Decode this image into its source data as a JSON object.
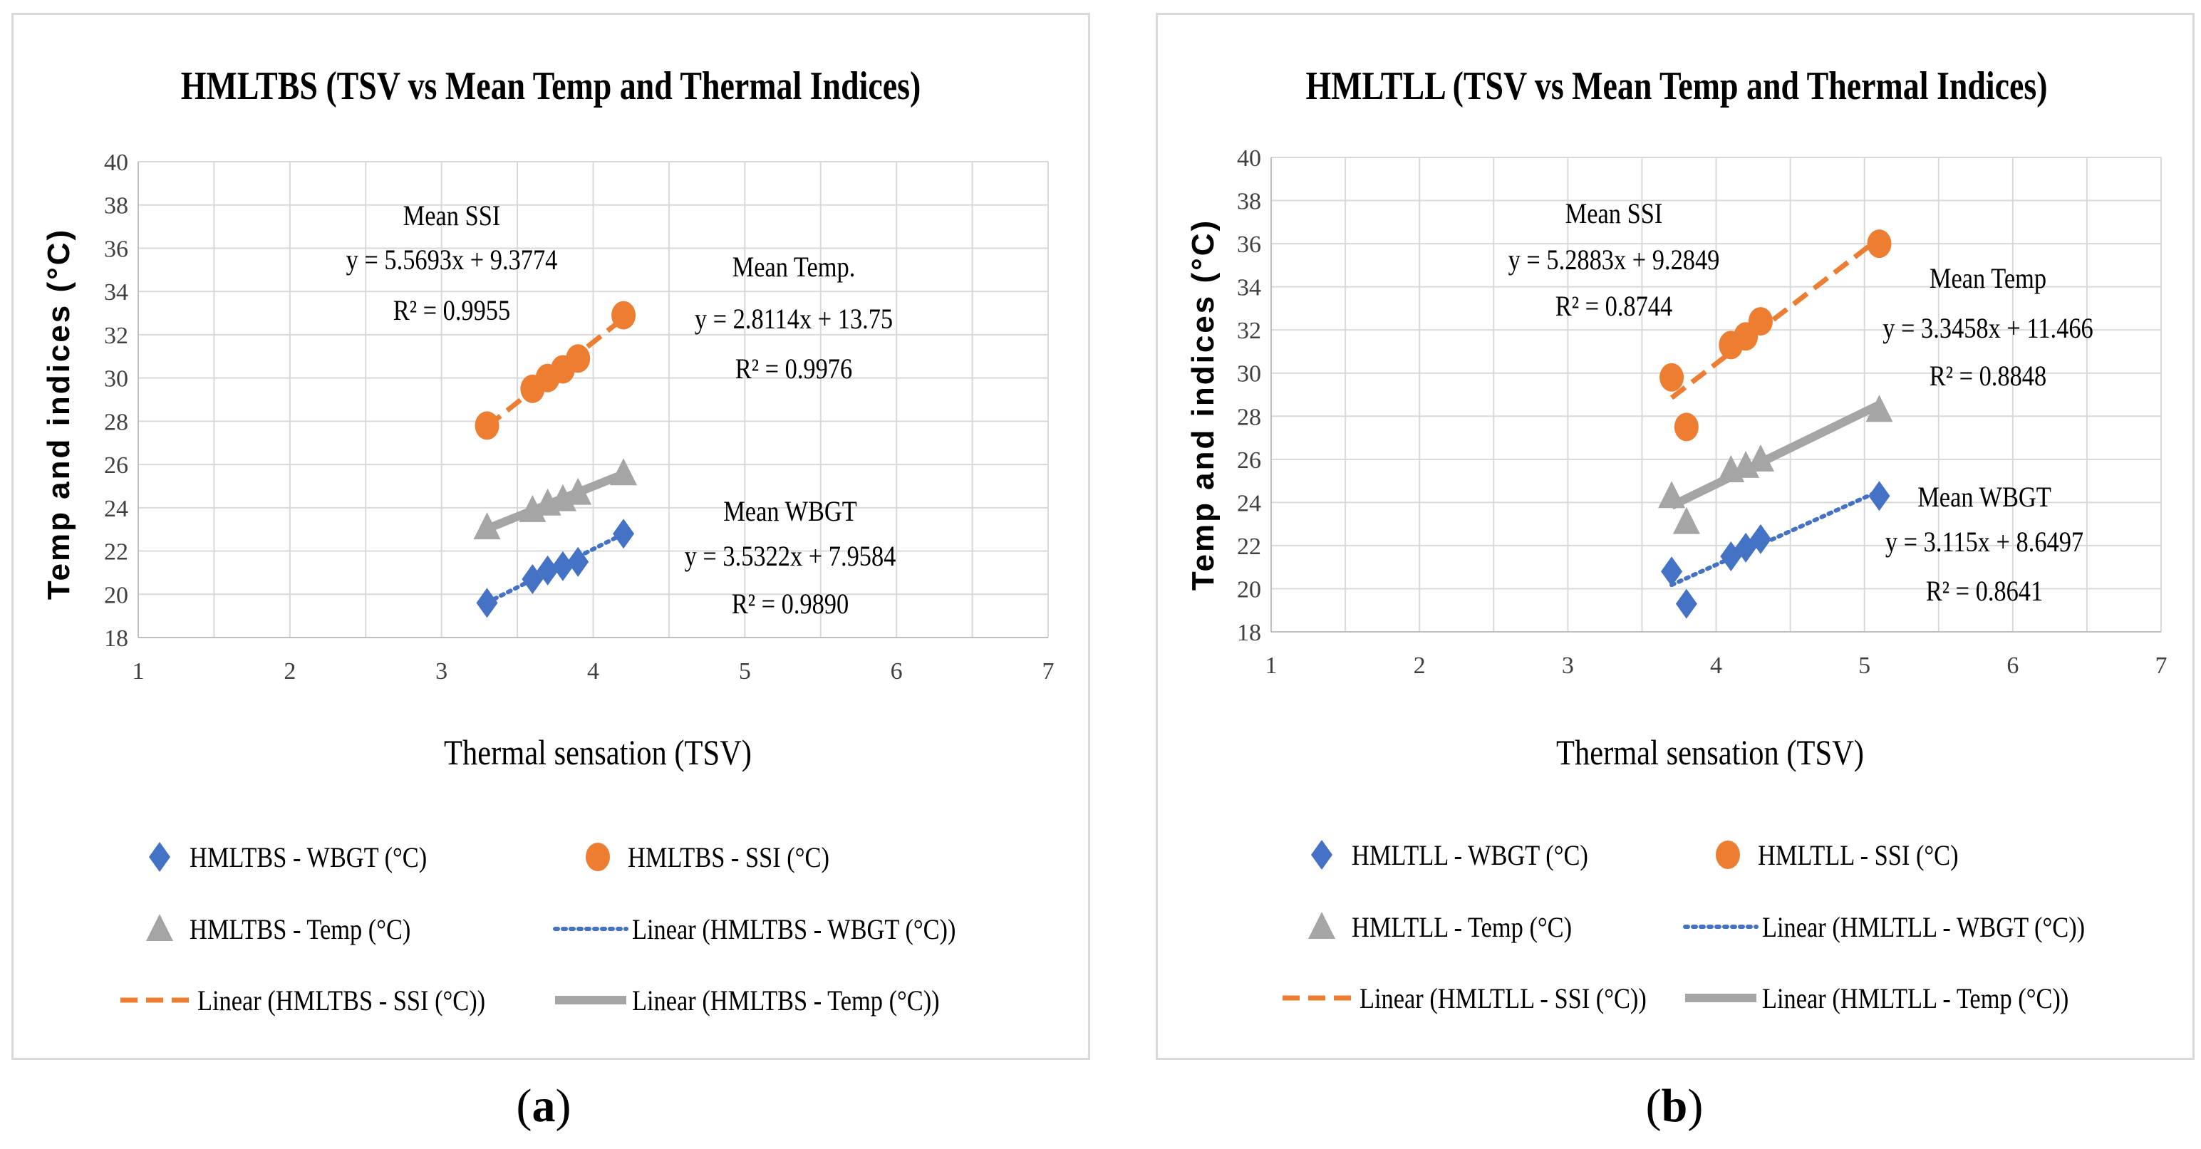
{
  "figure": {
    "captions": [
      {
        "open": "(",
        "letter": "a",
        "close": ")"
      },
      {
        "open": "(",
        "letter": "b",
        "close": ")"
      }
    ]
  },
  "chart_data": [
    {
      "type": "scatter",
      "title": "HMLTBS (TSV vs Mean Temp and Thermal Indices)",
      "xlabel": "Thermal sensation (TSV)",
      "ylabel": "Temp and indices (°C)",
      "xlim": [
        1,
        7
      ],
      "ylim": [
        18,
        40
      ],
      "xticks": [
        1,
        2,
        3,
        4,
        5,
        6,
        7
      ],
      "yticks": [
        18,
        20,
        22,
        24,
        26,
        28,
        30,
        32,
        34,
        36,
        38,
        40
      ],
      "grid": true,
      "colors": {
        "wbgt": "#4472c4",
        "ssi": "#ed7d31",
        "temp": "#a5a5a5"
      },
      "series": [
        {
          "key": "wbgt",
          "name": "HMLTBS - WBGT (°C)",
          "marker": "diamond",
          "x": [
            3.3,
            3.6,
            3.7,
            3.8,
            3.9,
            4.2
          ],
          "y": [
            19.6,
            20.7,
            21.1,
            21.3,
            21.5,
            22.8
          ]
        },
        {
          "key": "ssi",
          "name": "HMLTBS - SSI (°C)",
          "marker": "circle",
          "x": [
            3.3,
            3.6,
            3.7,
            3.8,
            3.9,
            4.2
          ],
          "y": [
            27.8,
            29.5,
            30.0,
            30.4,
            30.9,
            32.9
          ]
        },
        {
          "key": "temp",
          "name": "HMLTBS - Temp (°C)",
          "marker": "triangle",
          "x": [
            3.3,
            3.6,
            3.7,
            3.8,
            3.9,
            4.2
          ],
          "y": [
            23.1,
            23.9,
            24.2,
            24.4,
            24.7,
            25.6
          ]
        }
      ],
      "trendlines": [
        {
          "key": "wbgt",
          "name": "Linear (HMLTBS - WBGT (°C))",
          "style": "dotted",
          "slope": 3.5322,
          "intercept": 7.9584,
          "x_range": [
            3.3,
            4.2
          ]
        },
        {
          "key": "ssi",
          "name": "Linear (HMLTBS - SSI (°C))",
          "style": "dashed",
          "slope": 5.5693,
          "intercept": 9.3774,
          "x_range": [
            3.3,
            4.2
          ]
        },
        {
          "key": "temp",
          "name": "Linear (HMLTBS - Temp (°C))",
          "style": "solid",
          "slope": 2.8114,
          "intercept": 13.75,
          "x_range": [
            3.3,
            4.2
          ]
        }
      ],
      "annotations": [
        {
          "key": "ssi",
          "title": "Mean SSI",
          "equation": "y = 5.5693x + 9.3774",
          "r2": "R² = 0.9955"
        },
        {
          "key": "temp",
          "title": "Mean Temp.",
          "equation": "y = 2.8114x + 13.75",
          "r2": "R² = 0.9976"
        },
        {
          "key": "wbgt",
          "title": "Mean WBGT",
          "equation": "y = 3.5322x + 7.9584",
          "r2": "R² = 0.9890"
        }
      ],
      "legend_placement": "bottom"
    },
    {
      "type": "scatter",
      "title": "HMLTLL (TSV vs Mean Temp and Thermal Indices)",
      "xlabel": "Thermal sensation (TSV)",
      "ylabel": "Temp and indices (°C)",
      "xlim": [
        1,
        7
      ],
      "ylim": [
        18,
        40
      ],
      "xticks": [
        1,
        2,
        3,
        4,
        5,
        6,
        7
      ],
      "yticks": [
        18,
        20,
        22,
        24,
        26,
        28,
        30,
        32,
        34,
        36,
        38,
        40
      ],
      "grid": true,
      "colors": {
        "wbgt": "#4472c4",
        "ssi": "#ed7d31",
        "temp": "#a5a5a5"
      },
      "series": [
        {
          "key": "wbgt",
          "name": "HMLTLL - WBGT (°C)",
          "marker": "diamond",
          "x": [
            3.7,
            3.8,
            4.1,
            4.2,
            4.3,
            5.1
          ],
          "y": [
            20.8,
            19.3,
            21.5,
            21.9,
            22.3,
            24.3
          ]
        },
        {
          "key": "ssi",
          "name": "HMLTLL - SSI (°C)",
          "marker": "circle",
          "x": [
            3.7,
            3.8,
            4.1,
            4.2,
            4.3,
            5.1
          ],
          "y": [
            29.8,
            27.5,
            31.3,
            31.7,
            32.4,
            36.0
          ]
        },
        {
          "key": "temp",
          "name": "HMLTLL - Temp (°C)",
          "marker": "triangle",
          "x": [
            3.7,
            3.8,
            4.1,
            4.2,
            4.3,
            5.1
          ],
          "y": [
            24.3,
            23.1,
            25.5,
            25.7,
            26.0,
            28.3
          ]
        }
      ],
      "trendlines": [
        {
          "key": "wbgt",
          "name": "Linear (HMLTLL - WBGT (°C))",
          "style": "dotted",
          "slope": 3.115,
          "intercept": 8.6497,
          "x_range": [
            3.7,
            5.1
          ]
        },
        {
          "key": "ssi",
          "name": "Linear (HMLTLL - SSI (°C))",
          "style": "dashed",
          "slope": 5.2883,
          "intercept": 9.2849,
          "x_range": [
            3.7,
            5.1
          ]
        },
        {
          "key": "temp",
          "name": "Linear (HMLTLL - Temp (°C))",
          "style": "solid",
          "slope": 3.3458,
          "intercept": 11.466,
          "x_range": [
            3.7,
            5.1
          ]
        }
      ],
      "annotations": [
        {
          "key": "ssi",
          "title": "Mean SSI",
          "equation": "y = 5.2883x + 9.2849",
          "r2": "R² = 0.8744"
        },
        {
          "key": "temp",
          "title": "Mean Temp",
          "equation": "y = 3.3458x + 11.466",
          "r2": "R² = 0.8848"
        },
        {
          "key": "wbgt",
          "title": "Mean WBGT",
          "equation": "y = 3.115x + 8.6497",
          "r2": "R² = 0.8641"
        }
      ],
      "legend_placement": "bottom"
    }
  ]
}
